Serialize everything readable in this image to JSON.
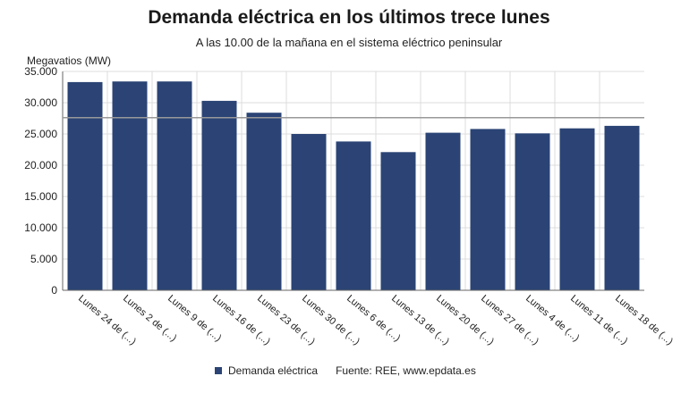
{
  "colors": {
    "bar": "#2b4475",
    "grid": "#dcdcdc",
    "axis": "#666666",
    "reference_line": "#999999"
  },
  "legend": {
    "series_label": "Demanda eléctrica",
    "source": "Fuente: REE, www.epdata.es"
  },
  "chart_data": {
    "type": "bar",
    "title": "Demanda eléctrica en los últimos trece lunes",
    "subtitle": "A las 10.00 de la mañana en el sistema eléctrico peninsular",
    "ylabel": "Megavatios (MW)",
    "xlabel": "",
    "ylim": [
      0,
      35000
    ],
    "yticks": [
      0,
      5000,
      10000,
      15000,
      20000,
      25000,
      30000,
      35000
    ],
    "ytick_labels": [
      "0",
      "5.000",
      "10.000",
      "15.000",
      "20.000",
      "25.000",
      "30.000",
      "35.000"
    ],
    "grid": true,
    "reference_line": 27600,
    "categories": [
      "Lunes 24 de (...)",
      "Lunes 2 de (...)",
      "Lunes 9 de (...)",
      "Lunes 16 de (...)",
      "Lunes 23 de (...)",
      "Lunes 30 de (...)",
      "Lunes 6 de (...)",
      "Lunes 13 de (...)",
      "Lunes 20 de (...)",
      "Lunes 27 de (...)",
      "Lunes 4 de (...)",
      "Lunes 11 de (...)",
      "Lunes 18 de (...)"
    ],
    "series": [
      {
        "name": "Demanda eléctrica",
        "values": [
          33300,
          33400,
          33400,
          30300,
          28400,
          25000,
          23800,
          22100,
          25200,
          25800,
          25100,
          25900,
          26300
        ]
      }
    ]
  }
}
